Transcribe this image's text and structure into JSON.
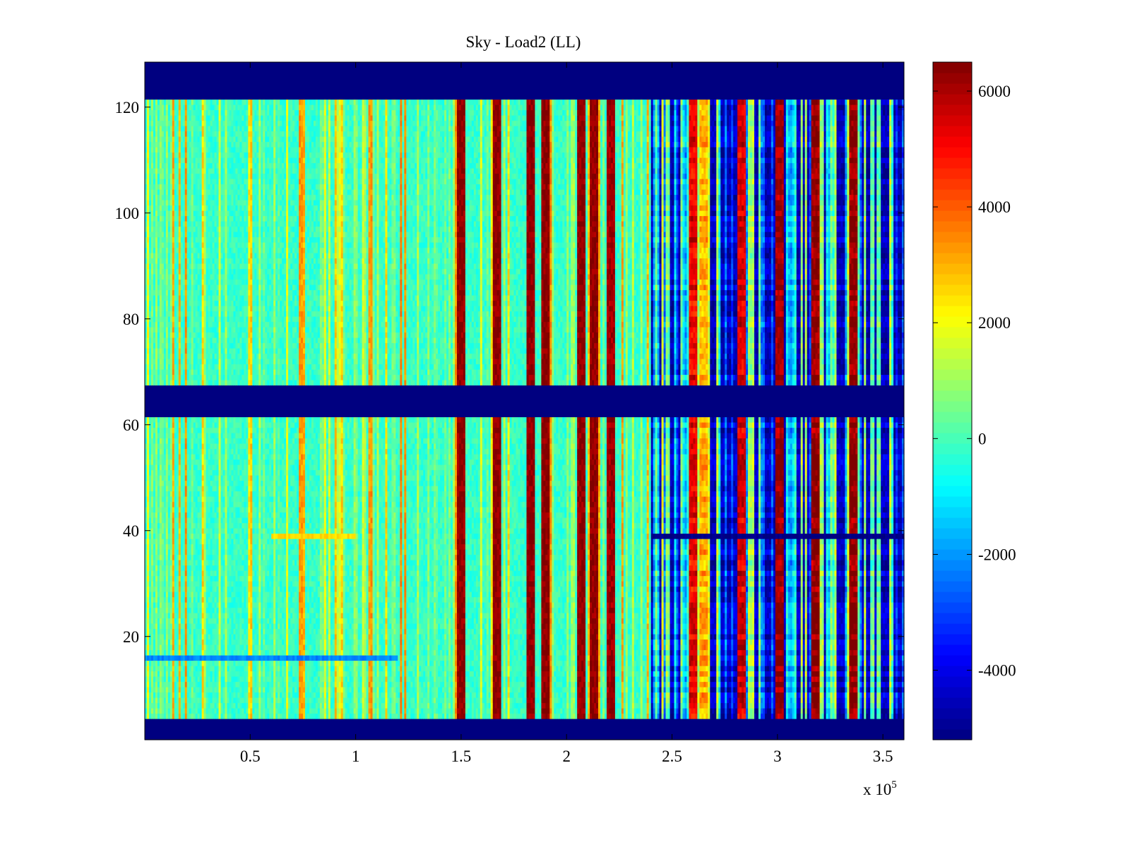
{
  "chart_data": {
    "type": "heatmap",
    "title": "Sky - Load2 (LL)",
    "xlabel": "",
    "ylabel": "",
    "x_range": [
      0,
      360000
    ],
    "y_range": [
      1,
      128
    ],
    "x_ticks": [
      50000,
      100000,
      150000,
      200000,
      250000,
      300000,
      350000
    ],
    "x_tick_labels": [
      "0.5",
      "1",
      "1.5",
      "2",
      "2.5",
      "3",
      "3.5"
    ],
    "x_exponent_label": "x 10",
    "x_exponent_power": "5",
    "y_ticks": [
      20,
      40,
      60,
      80,
      100,
      120
    ],
    "y_tick_labels": [
      "20",
      "40",
      "60",
      "80",
      "100",
      "120"
    ],
    "colormap": "jet",
    "clim": [
      -5200,
      6500
    ],
    "colorbar": {
      "ticks": [
        -4000,
        -2000,
        0,
        2000,
        4000,
        6000
      ],
      "tick_labels": [
        "-4000",
        "-2000",
        "0",
        "2000",
        "4000",
        "6000"
      ],
      "location": "right"
    },
    "masked_rows": [
      [
        1,
        4
      ],
      [
        62,
        67
      ],
      [
        122,
        128
      ]
    ],
    "masked_value": -5200,
    "background_level_by_x": [
      {
        "x_range": [
          0,
          240000
        ],
        "value": -200
      },
      {
        "x_range": [
          240000,
          360000
        ],
        "value": -4500
      }
    ],
    "high_columns": [
      {
        "x": 150000,
        "value": 6300
      },
      {
        "x": 167000,
        "value": 6300
      },
      {
        "x": 183000,
        "value": 6300
      },
      {
        "x": 190000,
        "value": 6300
      },
      {
        "x": 207000,
        "value": 6300
      },
      {
        "x": 213000,
        "value": 6300
      },
      {
        "x": 221000,
        "value": 6100
      },
      {
        "x": 260000,
        "value": 5200
      },
      {
        "x": 265000,
        "value": 3000
      },
      {
        "x": 283000,
        "value": 5500
      },
      {
        "x": 301000,
        "value": 6200
      },
      {
        "x": 318000,
        "value": 6300
      },
      {
        "x": 336000,
        "value": 6300
      }
    ],
    "anomalous_rows": [
      {
        "row": 39,
        "x_range": [
          60000,
          100000
        ],
        "value": 2500
      },
      {
        "row": 39,
        "x_range": [
          240000,
          360000
        ],
        "value": -5200
      },
      {
        "row": 16,
        "x_range": [
          0,
          120000
        ],
        "value": -2200
      }
    ],
    "colors": {
      "mask": "#00008f",
      "jet_low": "#00008f",
      "jet_mid": "#80ff80",
      "jet_high": "#800000"
    }
  }
}
